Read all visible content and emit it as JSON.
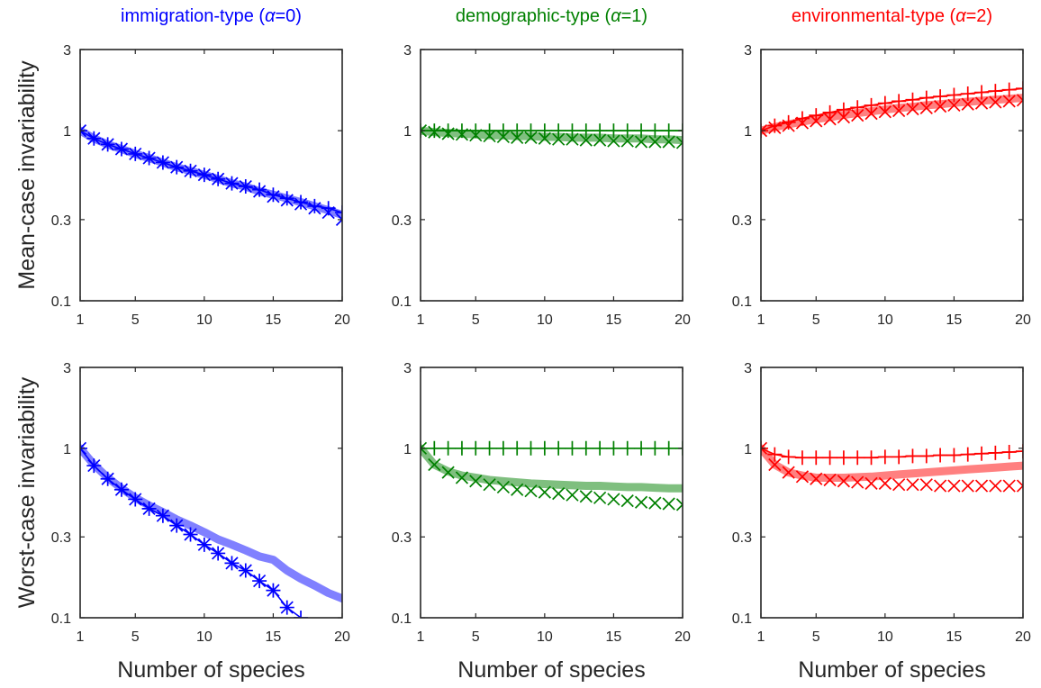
{
  "figure": {
    "column_titles": [
      {
        "prefix": "immigration-type (",
        "symbol": "α",
        "suffix": "=0)",
        "color": "#0000ff"
      },
      {
        "prefix": "demographic-type (",
        "symbol": "α",
        "suffix": "=1)",
        "color": "#008000"
      },
      {
        "prefix": "environmental-type (",
        "symbol": "α",
        "suffix": "=2)",
        "color": "#ff0000"
      }
    ],
    "row_labels": [
      "Mean-case invariability",
      "Worst-case invariability"
    ],
    "x_label": "Number of species",
    "y_ticks": [
      "0.1",
      "0.3",
      "1",
      "3"
    ],
    "x_ticks": [
      "1",
      "5",
      "10",
      "15",
      "20"
    ]
  },
  "chart_data": [
    {
      "type": "line",
      "panel": "mean-immigration",
      "color": "#0000ff",
      "band_color": "#8080ff",
      "xscale": "linear",
      "yscale": "log",
      "xlim": [
        1,
        20
      ],
      "ylim": [
        0.1,
        3
      ],
      "x": [
        1,
        2,
        3,
        4,
        5,
        6,
        7,
        8,
        9,
        10,
        11,
        12,
        13,
        14,
        15,
        16,
        17,
        18,
        19,
        20
      ],
      "series": [
        {
          "marker": "+",
          "values": [
            1.0,
            0.9,
            0.83,
            0.78,
            0.73,
            0.69,
            0.65,
            0.61,
            0.58,
            0.55,
            0.52,
            0.49,
            0.47,
            0.45,
            0.42,
            0.4,
            0.38,
            0.36,
            0.35,
            0.33
          ]
        },
        {
          "marker": "x",
          "values": [
            1.0,
            0.9,
            0.83,
            0.78,
            0.73,
            0.69,
            0.65,
            0.61,
            0.58,
            0.55,
            0.52,
            0.49,
            0.47,
            0.44,
            0.41,
            0.39,
            0.37,
            0.35,
            0.33,
            0.3
          ]
        },
        {
          "marker": "band",
          "values": [
            1.0,
            0.9,
            0.83,
            0.78,
            0.73,
            0.69,
            0.65,
            0.61,
            0.58,
            0.55,
            0.52,
            0.49,
            0.47,
            0.44,
            0.42,
            0.4,
            0.38,
            0.36,
            0.34,
            0.32
          ]
        }
      ]
    },
    {
      "type": "line",
      "panel": "mean-demographic",
      "color": "#008000",
      "band_color": "#7fbf7f",
      "xscale": "linear",
      "yscale": "log",
      "xlim": [
        1,
        20
      ],
      "ylim": [
        0.1,
        3
      ],
      "x": [
        1,
        2,
        3,
        4,
        5,
        6,
        7,
        8,
        9,
        10,
        11,
        12,
        13,
        14,
        15,
        16,
        17,
        18,
        19,
        20
      ],
      "series": [
        {
          "marker": "+",
          "values": [
            1,
            1,
            1,
            1,
            1,
            1,
            1,
            1,
            1,
            1,
            1,
            1,
            1,
            1,
            1,
            1,
            1,
            1,
            1,
            1
          ]
        },
        {
          "marker": "x",
          "values": [
            1.0,
            0.98,
            0.96,
            0.95,
            0.94,
            0.93,
            0.92,
            0.91,
            0.91,
            0.9,
            0.89,
            0.89,
            0.88,
            0.88,
            0.87,
            0.87,
            0.86,
            0.86,
            0.86,
            0.85
          ]
        },
        {
          "marker": "band",
          "values": [
            1.0,
            0.98,
            0.97,
            0.96,
            0.95,
            0.94,
            0.94,
            0.93,
            0.93,
            0.92,
            0.92,
            0.91,
            0.91,
            0.91,
            0.9,
            0.9,
            0.9,
            0.89,
            0.89,
            0.88
          ]
        }
      ]
    },
    {
      "type": "line",
      "panel": "mean-environmental",
      "color": "#ff0000",
      "band_color": "#ff8080",
      "xscale": "linear",
      "yscale": "log",
      "xlim": [
        1,
        20
      ],
      "ylim": [
        0.1,
        3
      ],
      "x": [
        1,
        2,
        3,
        4,
        5,
        6,
        7,
        8,
        9,
        10,
        11,
        12,
        13,
        14,
        15,
        16,
        17,
        18,
        19,
        20
      ],
      "series": [
        {
          "marker": "+",
          "values": [
            1.0,
            1.07,
            1.12,
            1.18,
            1.23,
            1.28,
            1.33,
            1.37,
            1.41,
            1.45,
            1.49,
            1.52,
            1.56,
            1.59,
            1.62,
            1.65,
            1.68,
            1.71,
            1.74,
            1.77
          ]
        },
        {
          "marker": "x",
          "values": [
            1.0,
            1.04,
            1.07,
            1.11,
            1.14,
            1.17,
            1.2,
            1.23,
            1.26,
            1.29,
            1.31,
            1.34,
            1.36,
            1.39,
            1.41,
            1.43,
            1.45,
            1.47,
            1.49,
            1.51
          ]
        },
        {
          "marker": "band",
          "values": [
            1.0,
            1.05,
            1.09,
            1.13,
            1.17,
            1.2,
            1.24,
            1.27,
            1.3,
            1.33,
            1.36,
            1.38,
            1.41,
            1.43,
            1.46,
            1.48,
            1.5,
            1.52,
            1.54,
            1.56
          ]
        }
      ]
    },
    {
      "type": "line",
      "panel": "worst-immigration",
      "color": "#0000ff",
      "band_color": "#8080ff",
      "xscale": "linear",
      "yscale": "log",
      "xlim": [
        1,
        20
      ],
      "ylim": [
        0.1,
        3
      ],
      "x": [
        1,
        2,
        3,
        4,
        5,
        6,
        7,
        8,
        9,
        10,
        11,
        12,
        13,
        14,
        15,
        16,
        17,
        18,
        19,
        20
      ],
      "series": [
        {
          "marker": "+",
          "values": [
            1.0,
            0.79,
            0.66,
            0.57,
            0.5,
            0.44,
            0.4,
            0.35,
            0.31,
            0.27,
            0.24,
            0.21,
            0.19,
            0.165,
            0.145,
            0.115,
            0.1,
            null,
            null,
            null
          ]
        },
        {
          "marker": "x",
          "values": [
            1.0,
            0.79,
            0.66,
            0.57,
            0.5,
            0.44,
            0.4,
            0.35,
            0.31,
            0.27,
            0.24,
            0.21,
            0.19,
            0.165,
            0.145,
            0.115,
            null,
            null,
            null,
            null
          ]
        },
        {
          "marker": "band",
          "values": [
            1.0,
            0.8,
            0.67,
            0.58,
            0.51,
            0.46,
            0.42,
            0.38,
            0.35,
            0.32,
            0.29,
            0.27,
            0.25,
            0.23,
            0.22,
            0.19,
            0.17,
            0.155,
            0.14,
            0.13
          ]
        }
      ]
    },
    {
      "type": "line",
      "panel": "worst-demographic",
      "color": "#008000",
      "band_color": "#7fbf7f",
      "xscale": "linear",
      "yscale": "log",
      "xlim": [
        1,
        20
      ],
      "ylim": [
        0.1,
        3
      ],
      "x": [
        1,
        2,
        3,
        4,
        5,
        6,
        7,
        8,
        9,
        10,
        11,
        12,
        13,
        14,
        15,
        16,
        17,
        18,
        19,
        20
      ],
      "series": [
        {
          "marker": "+",
          "values": [
            1,
            1,
            1,
            1,
            1,
            1,
            1,
            1,
            1,
            1,
            1,
            1,
            1,
            1,
            1,
            1,
            1,
            1,
            1,
            1
          ]
        },
        {
          "marker": "x",
          "values": [
            1.0,
            0.8,
            0.72,
            0.67,
            0.64,
            0.61,
            0.59,
            0.57,
            0.56,
            0.55,
            0.54,
            0.53,
            0.52,
            0.51,
            0.5,
            0.49,
            0.48,
            0.475,
            0.47,
            0.465
          ]
        },
        {
          "marker": "band",
          "values": [
            1.0,
            0.8,
            0.73,
            0.69,
            0.67,
            0.65,
            0.64,
            0.63,
            0.62,
            0.615,
            0.61,
            0.605,
            0.6,
            0.6,
            0.595,
            0.59,
            0.59,
            0.585,
            0.58,
            0.58
          ]
        }
      ]
    },
    {
      "type": "line",
      "panel": "worst-environmental",
      "color": "#ff0000",
      "band_color": "#ff8080",
      "xscale": "linear",
      "yscale": "log",
      "xlim": [
        1,
        20
      ],
      "ylim": [
        0.1,
        3
      ],
      "x": [
        1,
        2,
        3,
        4,
        5,
        6,
        7,
        8,
        9,
        10,
        11,
        12,
        13,
        14,
        15,
        16,
        17,
        18,
        19,
        20
      ],
      "series": [
        {
          "marker": "+",
          "values": [
            1.0,
            0.92,
            0.89,
            0.88,
            0.88,
            0.88,
            0.88,
            0.88,
            0.88,
            0.89,
            0.89,
            0.9,
            0.9,
            0.91,
            0.91,
            0.92,
            0.93,
            0.94,
            0.95,
            0.96
          ]
        },
        {
          "marker": "x",
          "values": [
            1.0,
            0.8,
            0.72,
            0.68,
            0.66,
            0.65,
            0.64,
            0.63,
            0.62,
            0.62,
            0.61,
            0.61,
            0.61,
            0.6,
            0.6,
            0.6,
            0.6,
            0.6,
            0.6,
            0.6
          ]
        },
        {
          "marker": "band",
          "values": [
            1.0,
            0.8,
            0.72,
            0.69,
            0.67,
            0.67,
            0.67,
            0.675,
            0.68,
            0.69,
            0.7,
            0.71,
            0.72,
            0.73,
            0.74,
            0.75,
            0.76,
            0.77,
            0.78,
            0.79
          ]
        }
      ]
    }
  ]
}
